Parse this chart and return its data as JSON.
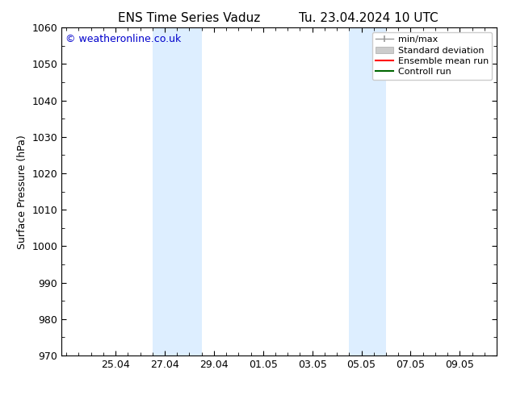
{
  "title_left": "ENS Time Series Vaduz",
  "title_right": "Tu. 23.04.2024 10 UTC",
  "ylabel": "Surface Pressure (hPa)",
  "ylim": [
    970,
    1060
  ],
  "yticks": [
    970,
    980,
    990,
    1000,
    1010,
    1020,
    1030,
    1040,
    1050,
    1060
  ],
  "xtick_labels": [
    "25.04",
    "27.04",
    "29.04",
    "01.05",
    "03.05",
    "05.05",
    "07.05",
    "09.05"
  ],
  "xtick_days": [
    2.0,
    4.0,
    6.0,
    8.0,
    10.0,
    12.0,
    14.0,
    16.0
  ],
  "watermark": "© weatheronline.co.uk",
  "watermark_color": "#0000cc",
  "bg_color": "#ffffff",
  "plot_bg_color": "#ffffff",
  "shaded_regions": [
    {
      "x_start": 3.5,
      "x_end": 5.5,
      "color": "#ddeeff"
    },
    {
      "x_start": 11.5,
      "x_end": 13.0,
      "color": "#ddeeff"
    }
  ],
  "xlim": [
    -0.2,
    17.5
  ],
  "legend_entries": [
    {
      "label": "min/max",
      "color": "#999999",
      "lw": 1.0,
      "ls": "-",
      "type": "minmax"
    },
    {
      "label": "Standard deviation",
      "color": "#cccccc",
      "lw": 8,
      "ls": "-",
      "type": "patch"
    },
    {
      "label": "Ensemble mean run",
      "color": "#ff0000",
      "lw": 1.5,
      "ls": "-",
      "type": "line"
    },
    {
      "label": "Controll run",
      "color": "#006600",
      "lw": 1.5,
      "ls": "-",
      "type": "line"
    }
  ],
  "tick_color": "#000000",
  "title_fontsize": 11,
  "label_fontsize": 9,
  "tick_fontsize": 9,
  "watermark_fontsize": 9,
  "legend_fontsize": 8
}
